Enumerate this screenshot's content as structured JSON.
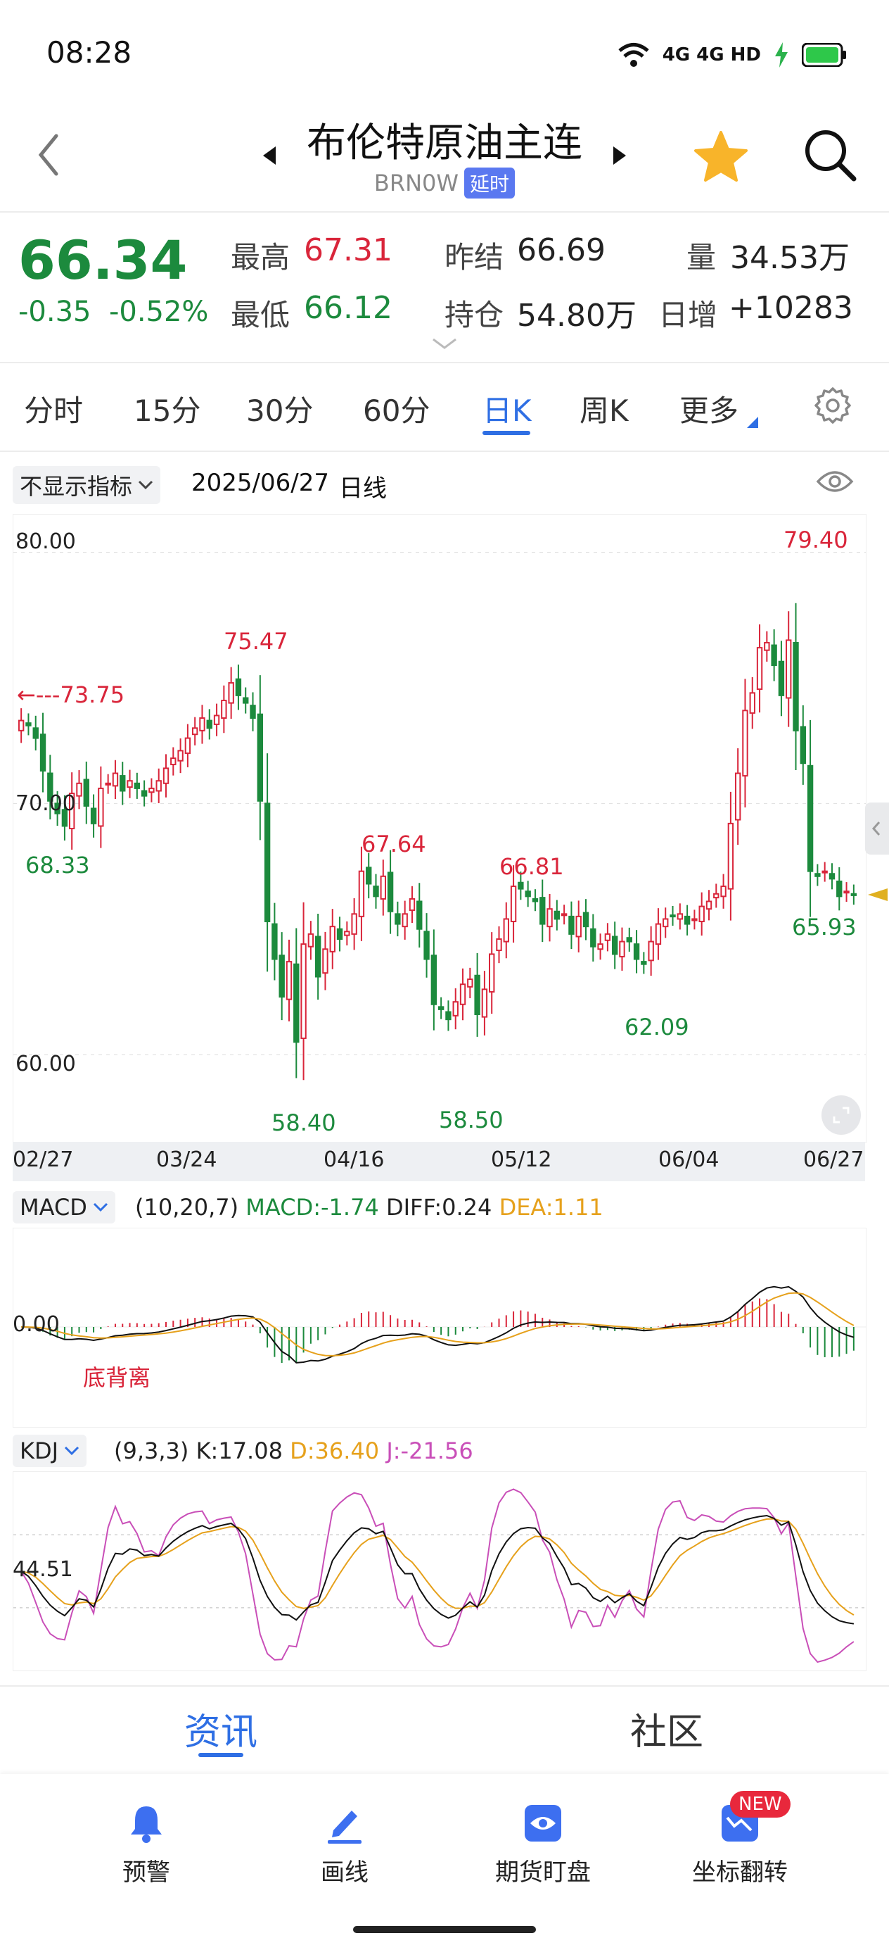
{
  "status_bar": {
    "time": "08:28",
    "network": "4G 4G HD",
    "icons": [
      "wifi-icon",
      "signal-icon",
      "signal-icon",
      "charging-icon",
      "battery-icon"
    ]
  },
  "header": {
    "title": "布伦特原油主连",
    "symbol": "BRN0W",
    "delay_badge": "延时",
    "icons": [
      "back-icon",
      "prev-arrow-icon",
      "next-arrow-icon",
      "star-icon",
      "search-icon"
    ],
    "star_color": "#f8b42a"
  },
  "quote": {
    "price": "66.34",
    "change": "-0.35",
    "change_pct": "-0.52%",
    "high_label": "最高",
    "high": "67.31",
    "low_label": "最低",
    "low": "66.12",
    "prev_settle_label": "昨结",
    "prev_settle": "66.69",
    "open_interest_label": "持仓",
    "open_interest": "54.80万",
    "volume_label": "量",
    "volume": "34.53万",
    "daily_add_label": "日增",
    "daily_add": "+10283"
  },
  "tabs": {
    "items": [
      "分时",
      "15分",
      "30分",
      "60分",
      "日K",
      "周K",
      "更多"
    ],
    "active": "日K"
  },
  "chart_toolbar": {
    "indicator_select": "不显示指标",
    "date": "2025/06/27",
    "period": "日线"
  },
  "chart_data": [
    {
      "type": "candlestick",
      "title": "",
      "y_ticks": [
        "80.00",
        "70.00",
        "60.00"
      ],
      "ylim": [
        56.5,
        81.5
      ],
      "x_tick_labels": [
        "02/27",
        "03/24",
        "04/16",
        "05/12",
        "06/04",
        "06/27"
      ],
      "annotations": [
        {
          "text": "73.75",
          "kind": "left-arrow"
        },
        {
          "text": "68.33",
          "kind": "low"
        },
        {
          "text": "75.47",
          "kind": "high"
        },
        {
          "text": "58.40",
          "kind": "low"
        },
        {
          "text": "67.64",
          "kind": "high"
        },
        {
          "text": "58.50",
          "kind": "low"
        },
        {
          "text": "66.81",
          "kind": "high"
        },
        {
          "text": "62.09",
          "kind": "low"
        },
        {
          "text": "79.40",
          "kind": "high"
        },
        {
          "text": "65.93",
          "kind": "low"
        }
      ],
      "up_color": "#d9253a",
      "down_color": "#1c8a3d",
      "closes": [
        73.3,
        73.1,
        72.6,
        71.3,
        70.1,
        69.6,
        69.1,
        70.4,
        70.8,
        69.9,
        69.2,
        70.6,
        70.8,
        71.2,
        70.5,
        70.9,
        70.6,
        70.3,
        70.6,
        70.9,
        71.4,
        71.8,
        72.1,
        72.6,
        73.0,
        73.4,
        73.0,
        73.5,
        74.1,
        74.8,
        74.3,
        74.0,
        73.4,
        70.1,
        65.3,
        63.8,
        62.3,
        63.7,
        60.5,
        64.4,
        64.8,
        63.1,
        64.2,
        65.1,
        64.6,
        64.9,
        65.6,
        67.3,
        66.8,
        66.3,
        67.1,
        65.7,
        65.2,
        65.6,
        66.2,
        65.0,
        63.8,
        62.0,
        61.8,
        61.4,
        62.1,
        62.8,
        63.0,
        61.6,
        62.6,
        64.0,
        64.6,
        65.4,
        66.7,
        66.6,
        66.3,
        66.1,
        65.2,
        65.8,
        65.4,
        65.6,
        64.8,
        65.5,
        65.1,
        64.3,
        64.4,
        64.8,
        64.0,
        64.5,
        64.5,
        63.8,
        63.6,
        64.5,
        65.2,
        65.4,
        65.5,
        65.6,
        65.2,
        65.4,
        65.9,
        66.1,
        66.4,
        66.7,
        69.2,
        71.2,
        73.7,
        74.4,
        76.2,
        76.4,
        75.5,
        74.3,
        76.5,
        72.9,
        71.6,
        67.3,
        67.1,
        67.3,
        67.0,
        66.3,
        66.5,
        66.34
      ]
    },
    {
      "type": "bar+line",
      "indicator": "MACD",
      "params": "(10,20,7)",
      "macd_label": "MACD:-1.74",
      "diff_label": "DIFF:0.24",
      "dea_label": "DEA:1.11",
      "zero_tick": "0.00",
      "annotation": "底背离",
      "colors": {
        "diff": "#111111",
        "dea": "#e6a11c",
        "pos": "#d9253a",
        "neg": "#1c8a3d"
      }
    },
    {
      "type": "line",
      "indicator": "KDJ",
      "params": "(9,3,3)",
      "k_label": "K:17.08",
      "d_label": "D:36.40",
      "j_label": "J:-21.56",
      "y_tick": "44.51",
      "colors": {
        "k": "#111111",
        "d": "#e6a11c",
        "j": "#c94fb8"
      }
    }
  ],
  "bottom_tabs": {
    "items": [
      "资讯",
      "社区"
    ],
    "active": "资讯"
  },
  "toolbar": {
    "items": [
      {
        "label": "预警",
        "icon": "bell-icon"
      },
      {
        "label": "画线",
        "icon": "pen-icon"
      },
      {
        "label": "期货盯盘",
        "icon": "eye-icon"
      },
      {
        "label": "坐标翻转",
        "icon": "flip-axis-icon"
      }
    ],
    "new_badge": "NEW",
    "icon_color": "#3d6ff0"
  }
}
